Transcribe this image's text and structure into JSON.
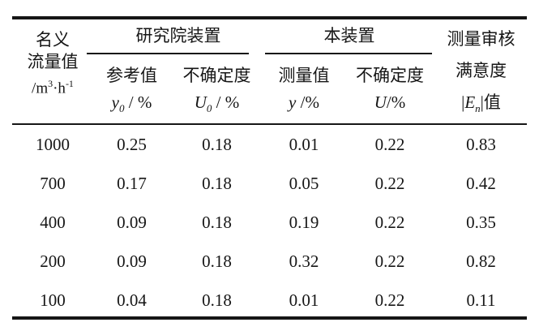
{
  "table": {
    "title_hint": "测量审核结果表",
    "colors": {
      "background": "#ffffff",
      "text": "#161616",
      "rule": "#161616"
    },
    "header": {
      "flow": {
        "line1": "名义",
        "line2": "流量值",
        "unit_base1": "/m",
        "unit_sup1": "3",
        "unit_base2": "·h",
        "unit_sup2": "-1"
      },
      "group1": "研究院装置",
      "group2": "本装置",
      "sub_ref": {
        "label": "参考值",
        "var": "y",
        "sub": "0",
        "rest": " / %"
      },
      "sub_u0": {
        "label": "不确定度",
        "var": "U",
        "sub": "0",
        "rest": " / %"
      },
      "sub_meas": {
        "label": "测量值",
        "var": "y",
        "rest": " /%"
      },
      "sub_u": {
        "label": "不确定度",
        "var": "U",
        "rest": "/%"
      },
      "en": {
        "line1": "测量审核",
        "line2": "满意度",
        "pre": "|",
        "var": "E",
        "sub": "n",
        "post": "|值"
      }
    },
    "rows": [
      {
        "flow": "1000",
        "y0": "0.25",
        "u0": "0.18",
        "y": "0.01",
        "u": "0.22",
        "en": "0.83"
      },
      {
        "flow": "700",
        "y0": "0.17",
        "u0": "0.18",
        "y": "0.05",
        "u": "0.22",
        "en": "0.42"
      },
      {
        "flow": "400",
        "y0": "0.09",
        "u0": "0.18",
        "y": "0.19",
        "u": "0.22",
        "en": "0.35"
      },
      {
        "flow": "200",
        "y0": "0.09",
        "u0": "0.18",
        "y": "0.32",
        "u": "0.22",
        "en": "0.82"
      },
      {
        "flow": "100",
        "y0": "0.04",
        "u0": "0.18",
        "y": "0.01",
        "u": "0.22",
        "en": "0.11"
      }
    ]
  },
  "chart_data": {
    "type": "table",
    "title": "测量审核结果",
    "columns": [
      "名义流量值/m3·h-1",
      "研究院装置 参考值 y0/%",
      "研究院装置 不确定度 U0/%",
      "本装置 测量值 y/%",
      "本装置 不确定度 U/%",
      "测量审核满意度 |En|值"
    ],
    "rows": [
      [
        1000,
        0.25,
        0.18,
        0.01,
        0.22,
        0.83
      ],
      [
        700,
        0.17,
        0.18,
        0.05,
        0.22,
        0.42
      ],
      [
        400,
        0.09,
        0.18,
        0.19,
        0.22,
        0.35
      ],
      [
        200,
        0.09,
        0.18,
        0.32,
        0.22,
        0.82
      ],
      [
        100,
        0.04,
        0.18,
        0.01,
        0.22,
        0.11
      ]
    ]
  }
}
